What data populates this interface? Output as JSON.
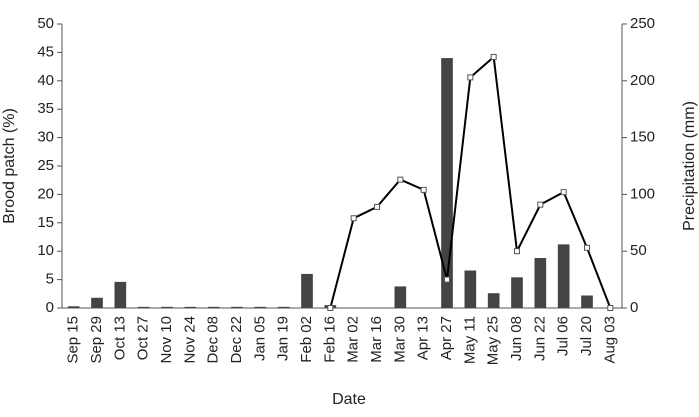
{
  "chart_data": {
    "type": "bar_line",
    "x_label": "Date",
    "y_label": "Brood patch (%)",
    "y2_label": "Precipitation (mm)",
    "categories": [
      "Sep 15",
      "Sep 29",
      "Oct 13",
      "Oct 27",
      "Nov 10",
      "Nov 24",
      "Dec 08",
      "Dec 22",
      "Jan 05",
      "Jan 19",
      "Feb 02",
      "Feb 16",
      "Mar 02",
      "Mar 16",
      "Mar 30",
      "Apr 13",
      "Apr 27",
      "May 11",
      "May 25",
      "Jun 08",
      "Jun 22",
      "Jul 06",
      "Jul 20",
      "Aug 03"
    ],
    "series": [
      {
        "name": "Brood patch",
        "type": "bar",
        "color": "#444444",
        "values": [
          0.3,
          1.8,
          4.6,
          0.2,
          0.2,
          0.2,
          0.2,
          0.2,
          0.2,
          0.2,
          6,
          0.5,
          null,
          null,
          3.8,
          null,
          44,
          6.6,
          2.6,
          5.4,
          8.8,
          11.2,
          2.2,
          null
        ]
      },
      {
        "name": "Precipitation",
        "type": "line",
        "axis": "y2",
        "color": "#000000",
        "values": [
          null,
          null,
          null,
          null,
          null,
          null,
          null,
          null,
          null,
          null,
          null,
          0,
          79,
          89,
          113,
          104,
          25,
          203,
          221,
          50,
          91,
          102,
          53,
          0
        ]
      }
    ],
    "ylim": [
      0,
      50
    ],
    "yticks": [
      0,
      5,
      10,
      15,
      20,
      25,
      30,
      35,
      40,
      45,
      50
    ],
    "y2lim": [
      0,
      250
    ],
    "y2ticks": [
      0,
      50,
      100,
      150,
      200,
      250
    ]
  }
}
